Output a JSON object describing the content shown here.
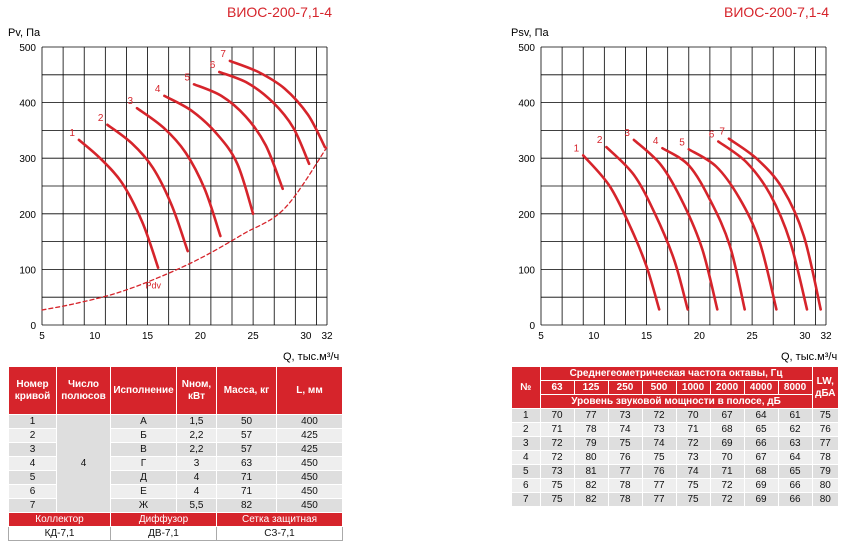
{
  "chart_data": [
    {
      "type": "line",
      "title": "ВИОС-200-7,1-4",
      "xlabel": "Q, тыс.м³/ч",
      "ylabel": "Pv, Па",
      "x_ticks": [
        "5",
        "10",
        "15",
        "20",
        "25",
        "30",
        "32"
      ],
      "y_ticks": [
        "0",
        "100",
        "200",
        "300",
        "400",
        "500"
      ],
      "xlim": [
        5,
        32
      ],
      "ylim": [
        0,
        500
      ],
      "grid": true,
      "series": [
        {
          "name": "1",
          "points": [
            [
              8.5,
              333
            ],
            [
              10.5,
              300
            ],
            [
              12.6,
              255
            ],
            [
              14.5,
              185
            ],
            [
              16.0,
              103
            ]
          ]
        },
        {
          "name": "2",
          "points": [
            [
              11.2,
              360
            ],
            [
              13.5,
              327
            ],
            [
              15.5,
              283
            ],
            [
              17.3,
              215
            ],
            [
              18.8,
              133
            ]
          ]
        },
        {
          "name": "3",
          "points": [
            [
              14.0,
              390
            ],
            [
              16.5,
              355
            ],
            [
              18.6,
              310
            ],
            [
              20.4,
              245
            ],
            [
              21.9,
              160
            ]
          ]
        },
        {
          "name": "4",
          "points": [
            [
              16.6,
              412
            ],
            [
              19.2,
              385
            ],
            [
              21.6,
              343
            ],
            [
              23.5,
              290
            ],
            [
              25.0,
              200
            ]
          ]
        },
        {
          "name": "5",
          "points": [
            [
              19.4,
              433
            ],
            [
              22.0,
              412
            ],
            [
              24.3,
              375
            ],
            [
              26.2,
              323
            ],
            [
              27.8,
              245
            ]
          ]
        },
        {
          "name": "6",
          "points": [
            [
              21.8,
              455
            ],
            [
              24.5,
              435
            ],
            [
              26.9,
              400
            ],
            [
              28.8,
              355
            ],
            [
              30.3,
              290
            ]
          ]
        },
        {
          "name": "7",
          "points": [
            [
              22.8,
              475
            ],
            [
              25.5,
              455
            ],
            [
              28.0,
              425
            ],
            [
              30.2,
              378
            ],
            [
              31.8,
              320
            ]
          ]
        },
        {
          "name": "Pdv",
          "style": "dashed",
          "points": [
            [
              5,
              27
            ],
            [
              8,
              38
            ],
            [
              12,
              57
            ],
            [
              16,
              85
            ],
            [
              20,
              120
            ],
            [
              24,
              163
            ],
            [
              28,
              210
            ],
            [
              32,
              320
            ]
          ]
        }
      ]
    },
    {
      "type": "line",
      "title": "ВИОС-200-7,1-4",
      "xlabel": "Q, тыс.м³/ч",
      "ylabel": "Psv, Па",
      "x_ticks": [
        "5",
        "10",
        "15",
        "20",
        "25",
        "30",
        "32"
      ],
      "y_ticks": [
        "0",
        "100",
        "200",
        "300",
        "400",
        "500"
      ],
      "xlim": [
        5,
        32
      ],
      "ylim": [
        0,
        500
      ],
      "grid": true,
      "series": [
        {
          "name": "1",
          "points": [
            [
              9.0,
              305
            ],
            [
              11.5,
              250
            ],
            [
              13.5,
              175
            ],
            [
              15.0,
              105
            ],
            [
              16.2,
              28
            ]
          ]
        },
        {
          "name": "2",
          "points": [
            [
              11.2,
              320
            ],
            [
              13.8,
              270
            ],
            [
              15.8,
              200
            ],
            [
              17.6,
              118
            ],
            [
              18.9,
              28
            ]
          ]
        },
        {
          "name": "3",
          "points": [
            [
              13.8,
              333
            ],
            [
              16.4,
              287
            ],
            [
              18.5,
              218
            ],
            [
              20.3,
              135
            ],
            [
              21.7,
              28
            ]
          ]
        },
        {
          "name": "4",
          "points": [
            [
              16.5,
              318
            ],
            [
              19.0,
              287
            ],
            [
              21.1,
              222
            ],
            [
              22.9,
              142
            ],
            [
              24.3,
              28
            ]
          ]
        },
        {
          "name": "5",
          "points": [
            [
              19.0,
              316
            ],
            [
              21.6,
              285
            ],
            [
              23.8,
              228
            ],
            [
              25.7,
              150
            ],
            [
              27.3,
              28
            ]
          ]
        },
        {
          "name": "6",
          "points": [
            [
              21.8,
              330
            ],
            [
              24.5,
              292
            ],
            [
              26.7,
              235
            ],
            [
              28.6,
              150
            ],
            [
              30.2,
              28
            ]
          ]
        },
        {
          "name": "7",
          "points": [
            [
              22.8,
              335
            ],
            [
              25.5,
              298
            ],
            [
              27.9,
              245
            ],
            [
              29.9,
              160
            ],
            [
              31.5,
              28
            ]
          ]
        }
      ]
    }
  ],
  "left_table": {
    "headers": [
      "Номер кривой",
      "Число полюсов",
      "Исполнение",
      "Nном, кВт",
      "Масса, кг",
      "L, мм"
    ],
    "poles": "4",
    "rows": [
      [
        "1",
        "А",
        "1,5",
        "50",
        "400"
      ],
      [
        "2",
        "Б",
        "2,2",
        "57",
        "425"
      ],
      [
        "3",
        "В",
        "2,2",
        "57",
        "425"
      ],
      [
        "4",
        "Г",
        "3",
        "63",
        "450"
      ],
      [
        "5",
        "Д",
        "4",
        "71",
        "450"
      ],
      [
        "6",
        "Е",
        "4",
        "71",
        "450"
      ],
      [
        "7",
        "Ж",
        "5,5",
        "82",
        "450"
      ]
    ],
    "accessories": [
      "Коллектор",
      "Диффузор",
      "Сетка защитная"
    ],
    "accessory_values": [
      "КД-7,1",
      "ДВ-7,1",
      "СЗ-7,1"
    ]
  },
  "right_table": {
    "no_label": "№",
    "freq_header": "Среднегеометрическая частота октавы, Гц",
    "freqs": [
      "63",
      "125",
      "250",
      "500",
      "1000",
      "2000",
      "4000",
      "8000"
    ],
    "level_header": "Уровень звуковой мощности в полосе, дБ",
    "lw_label": "LW, дБА",
    "rows": [
      [
        "1",
        "70",
        "77",
        "73",
        "72",
        "70",
        "67",
        "64",
        "61",
        "75"
      ],
      [
        "2",
        "71",
        "78",
        "74",
        "73",
        "71",
        "68",
        "65",
        "62",
        "76"
      ],
      [
        "3",
        "72",
        "79",
        "75",
        "74",
        "72",
        "69",
        "66",
        "63",
        "77"
      ],
      [
        "4",
        "72",
        "80",
        "76",
        "75",
        "73",
        "70",
        "67",
        "64",
        "78"
      ],
      [
        "5",
        "73",
        "81",
        "77",
        "76",
        "74",
        "71",
        "68",
        "65",
        "79"
      ],
      [
        "6",
        "75",
        "82",
        "78",
        "77",
        "75",
        "72",
        "69",
        "66",
        "80"
      ],
      [
        "7",
        "75",
        "82",
        "78",
        "77",
        "75",
        "72",
        "69",
        "66",
        "80"
      ]
    ]
  }
}
